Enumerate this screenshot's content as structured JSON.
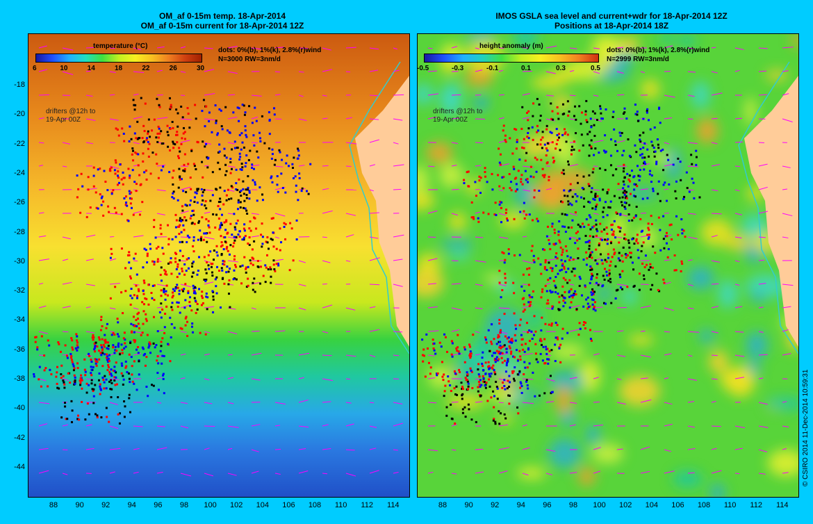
{
  "left_panel": {
    "title_line1": "OM_af 0-15m temp. 18-Apr-2014",
    "title_line2": "OM_af 0-15m current for 18-Apr-2014 12Z",
    "colorbar_title": "temperature (°C)",
    "colorbar_ticks": [
      "6",
      "10",
      "14",
      "18",
      "22",
      "26",
      "30"
    ],
    "legend_line1": "dots: 0%(b), 1%(k), 2.8%(r)wind",
    "legend_line2": "N=3000 RW=3nm/d",
    "drifter_note_line1": "drifters @12h to",
    "drifter_note_line2": "19-Apr 00Z"
  },
  "right_panel": {
    "title_line1": "IMOS GSLA sea level and current+wdr for 18-Apr-2014 12Z",
    "title_line2": "Positions at 18-Apr-2014 18Z",
    "colorbar_title": "height anomaly (m)",
    "colorbar_ticks": [
      "-0.5",
      "-0.3",
      "-0.1",
      "0.1",
      "0.3",
      "0.5"
    ],
    "legend_line1": "dots: 0%(b), 1%(k), 2.8%(r)wind",
    "legend_line2": "N=2999 RW=3nm/d",
    "drifter_note_line1": "drifters @12h to",
    "drifter_note_line2": "19-Apr 00Z"
  },
  "axes": {
    "lat_ticks": [
      "-18",
      "-20",
      "-22",
      "-24",
      "-26",
      "-28",
      "-30",
      "-32",
      "-34",
      "-36",
      "-38",
      "-40",
      "-42",
      "-44"
    ],
    "lon_ticks": [
      "88",
      "90",
      "92",
      "94",
      "96",
      "98",
      "100",
      "102",
      "104",
      "106",
      "108",
      "110",
      "112",
      "114"
    ]
  },
  "credit": "© CSIRO 2014   11-Dec-2014 10:59:31",
  "colors": {
    "background": "#00ccff",
    "land": "#ffcc99",
    "coast": "#33cccc",
    "vector": "#ff00ff",
    "drifter_wind0": "#0000ff",
    "drifter_wind1": "#000000",
    "drifter_wind28": "#ff0000"
  }
}
